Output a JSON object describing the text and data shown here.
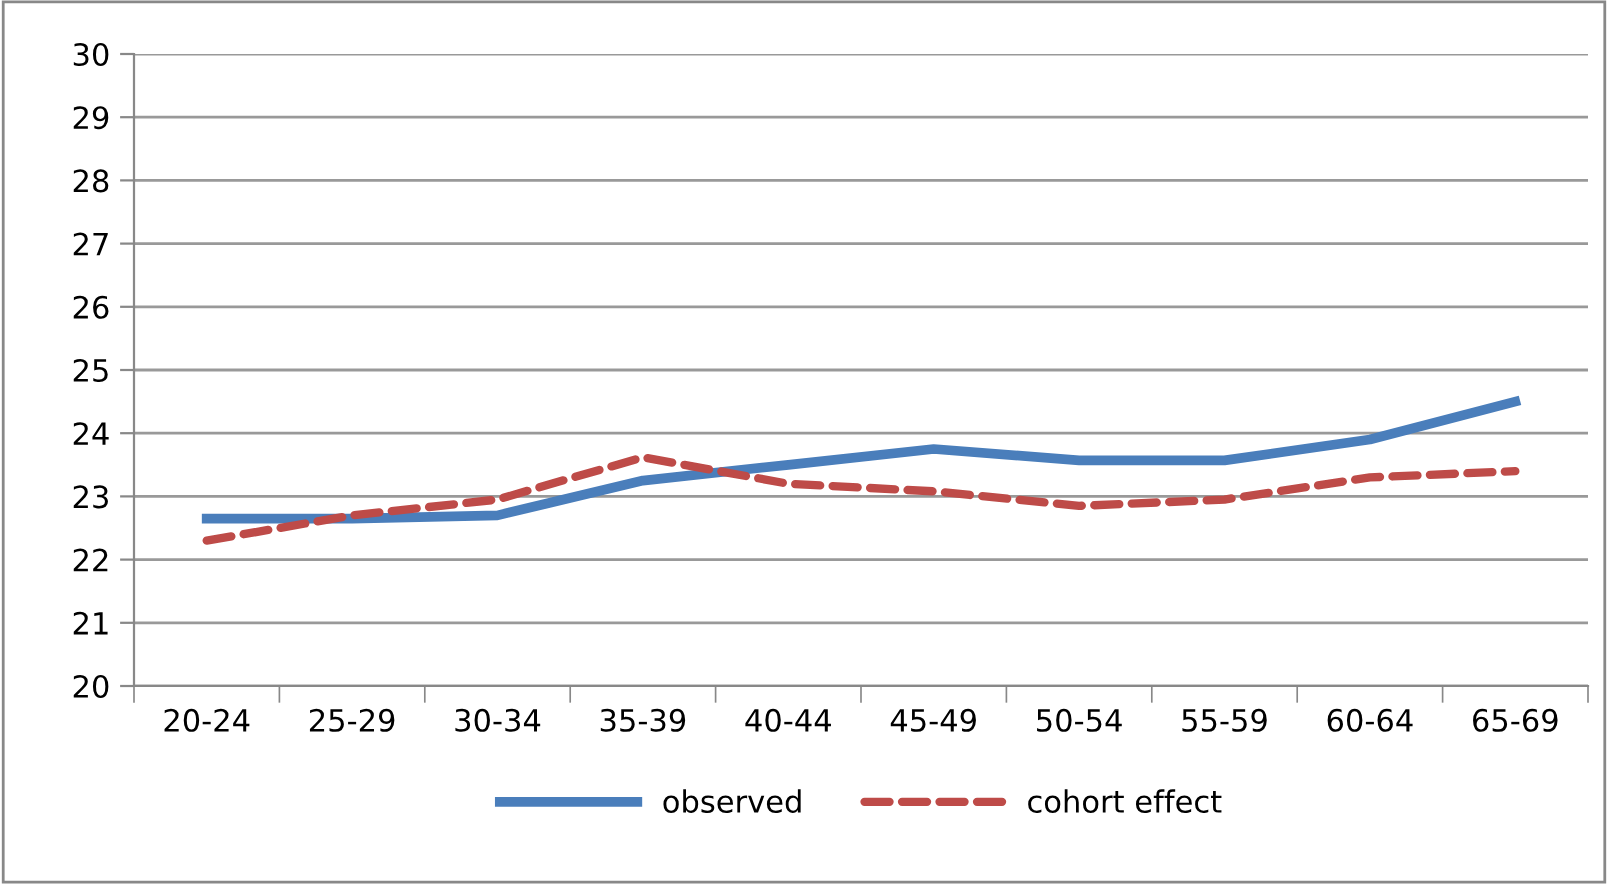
{
  "chart_data": {
    "type": "line",
    "categories": [
      "20-24",
      "25-29",
      "30-34",
      "35-39",
      "40-44",
      "45-49",
      "50-54",
      "55-59",
      "60-64",
      "65-69"
    ],
    "series": [
      {
        "name": "observed",
        "color": "#4a7ebb",
        "line_style": "solid",
        "values": [
          22.65,
          22.65,
          22.7,
          23.25,
          23.5,
          23.75,
          23.57,
          23.57,
          23.9,
          24.5
        ]
      },
      {
        "name": "cohort effect",
        "color": "#be4b48",
        "line_style": "dashed",
        "values": [
          22.3,
          22.7,
          22.95,
          23.62,
          23.2,
          23.08,
          22.85,
          22.95,
          23.3,
          23.4
        ]
      }
    ],
    "ylim": [
      20,
      30
    ],
    "yticks": [
      20,
      21,
      22,
      23,
      24,
      25,
      26,
      27,
      28,
      29,
      30
    ],
    "grid": "y",
    "legend": "bottom",
    "marker": "none"
  }
}
